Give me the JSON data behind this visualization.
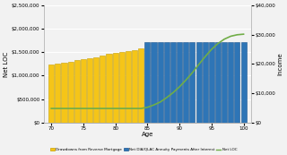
{
  "yellow_bar_ages": [
    70,
    71,
    72,
    73,
    74,
    75,
    76,
    77,
    78,
    79,
    80,
    81,
    82,
    83,
    84
  ],
  "yellow_bar_values": [
    1230000,
    1250000,
    1270000,
    1300000,
    1330000,
    1355000,
    1380000,
    1400000,
    1430000,
    1460000,
    1480000,
    1510000,
    1530000,
    1555000,
    1580000
  ],
  "blue_bar_ages": [
    85,
    86,
    87,
    88,
    89,
    90,
    91,
    92,
    93,
    94,
    95,
    96,
    97,
    98,
    99,
    100
  ],
  "blue_bar_values": [
    1720000,
    1720000,
    1720000,
    1720000,
    1720000,
    1720000,
    1720000,
    1720000,
    1720000,
    1720000,
    1720000,
    1720000,
    1720000,
    1720000,
    1720000,
    1720000
  ],
  "net_loc_ages": [
    70,
    71,
    72,
    73,
    74,
    75,
    76,
    77,
    78,
    79,
    80,
    81,
    82,
    83,
    84,
    85,
    86,
    87,
    88,
    89,
    90,
    91,
    92,
    93,
    94,
    95,
    96,
    97,
    98,
    99,
    100
  ],
  "net_loc_values": [
    4800,
    4800,
    4800,
    4800,
    4800,
    4800,
    4800,
    4800,
    4800,
    4800,
    4800,
    4800,
    4800,
    4800,
    4800,
    5200,
    6000,
    7000,
    8500,
    10200,
    12200,
    14500,
    17000,
    19800,
    22500,
    25000,
    27000,
    28500,
    29500,
    30000,
    30200
  ],
  "left_ylim": [
    0,
    2500000
  ],
  "right_ylim": [
    0,
    40000
  ],
  "left_yticks": [
    0,
    500000,
    1000000,
    1500000,
    2000000,
    2500000
  ],
  "right_yticks": [
    0,
    10000,
    20000,
    30000,
    40000
  ],
  "xticks": [
    70,
    75,
    80,
    85,
    90,
    95,
    100
  ],
  "xlabel": "Age",
  "left_ylabel": "Net LOC",
  "right_ylabel": "Income",
  "yellow_color": "#F5C518",
  "yellow_edge": "#C8A000",
  "blue_color": "#2E75B6",
  "blue_edge": "#1A5490",
  "green_color": "#70AD47",
  "legend_labels": [
    "Drawdowns from Reverse Mortgage",
    "Net DIA/QLAC Annuity Payments After Interest",
    "Net LOC"
  ],
  "background_color": "#F2F2F2",
  "plot_bg": "#F2F2F2",
  "grid_color": "#FFFFFF",
  "bar_width": 0.85
}
